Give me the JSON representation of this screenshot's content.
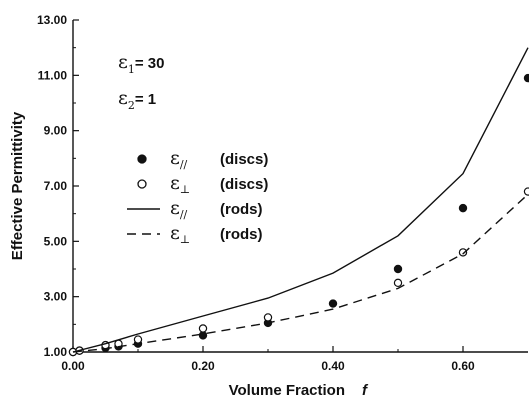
{
  "chart_data": {
    "type": "line",
    "xlabel": "Volume Fraction",
    "xlabel_symbol": "f",
    "ylabel": "Effective Permittivity",
    "xlim": [
      0,
      0.7
    ],
    "ylim": [
      1,
      13
    ],
    "x_ticks": [
      0,
      0.2,
      0.4,
      0.6
    ],
    "x_tick_labels": [
      "0.00",
      "0.20",
      "0.40",
      "0.60"
    ],
    "y_ticks": [
      1,
      3,
      5,
      7,
      9,
      11,
      13
    ],
    "y_tick_labels": [
      "1.00",
      "3.00",
      "5.00",
      "7.00",
      "9.00",
      "11.00",
      "13.00"
    ],
    "parameters": [
      {
        "symbol": "ε",
        "subscript": "1",
        "text": "= 30"
      },
      {
        "symbol": "ε",
        "subscript": "2",
        "text": "= 1"
      }
    ],
    "series": [
      {
        "name": "(discs)",
        "symbol": "ε",
        "subscript": "//",
        "style": "filled-circle",
        "x": [
          0,
          0.01,
          0.05,
          0.07,
          0.1,
          0.2,
          0.3,
          0.4,
          0.5,
          0.6,
          0.7
        ],
        "y": [
          1.0,
          1.05,
          1.15,
          1.2,
          1.3,
          1.6,
          2.05,
          2.75,
          4.0,
          6.2,
          10.9
        ]
      },
      {
        "name": "(discs)",
        "symbol": "ε",
        "subscript": "⊥",
        "style": "open-circle",
        "x": [
          0,
          0.01,
          0.05,
          0.07,
          0.1,
          0.2,
          0.3,
          0.5,
          0.6,
          0.7
        ],
        "y": [
          1.0,
          1.05,
          1.25,
          1.3,
          1.45,
          1.85,
          2.25,
          3.5,
          4.6,
          6.8
        ]
      },
      {
        "name": "(rods)",
        "symbol": "ε",
        "subscript": "//",
        "style": "solid-line",
        "x": [
          0,
          0.05,
          0.1,
          0.2,
          0.3,
          0.4,
          0.5,
          0.6,
          0.7
        ],
        "y": [
          1.0,
          1.3,
          1.65,
          2.3,
          2.95,
          3.85,
          5.2,
          7.45,
          12.0
        ]
      },
      {
        "name": "(rods)",
        "symbol": "ε",
        "subscript": "⊥",
        "style": "dashed-line",
        "x": [
          0,
          0.05,
          0.1,
          0.2,
          0.3,
          0.4,
          0.5,
          0.6,
          0.7
        ],
        "y": [
          1.0,
          1.12,
          1.3,
          1.65,
          2.05,
          2.55,
          3.3,
          4.55,
          6.7
        ]
      }
    ]
  }
}
